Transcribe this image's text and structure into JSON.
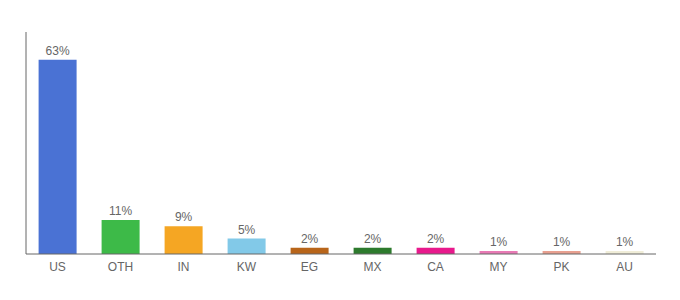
{
  "chart_data": {
    "type": "bar",
    "categories": [
      "US",
      "OTH",
      "IN",
      "KW",
      "EG",
      "MX",
      "CA",
      "MY",
      "PK",
      "AU"
    ],
    "values": [
      63,
      11,
      9,
      5,
      2,
      2,
      2,
      1,
      1,
      1
    ],
    "value_labels": [
      "63%",
      "11%",
      "9%",
      "5%",
      "2%",
      "2%",
      "2%",
      "1%",
      "1%",
      "1%"
    ],
    "colors": [
      "#4a72d4",
      "#3dba48",
      "#f5a623",
      "#82c9e8",
      "#b8651a",
      "#2d7a2d",
      "#e8198c",
      "#e87ab5",
      "#e8a090",
      "#f0edd8"
    ],
    "ylim": [
      0,
      72
    ],
    "data_labels": true,
    "tick_labels": "x"
  }
}
